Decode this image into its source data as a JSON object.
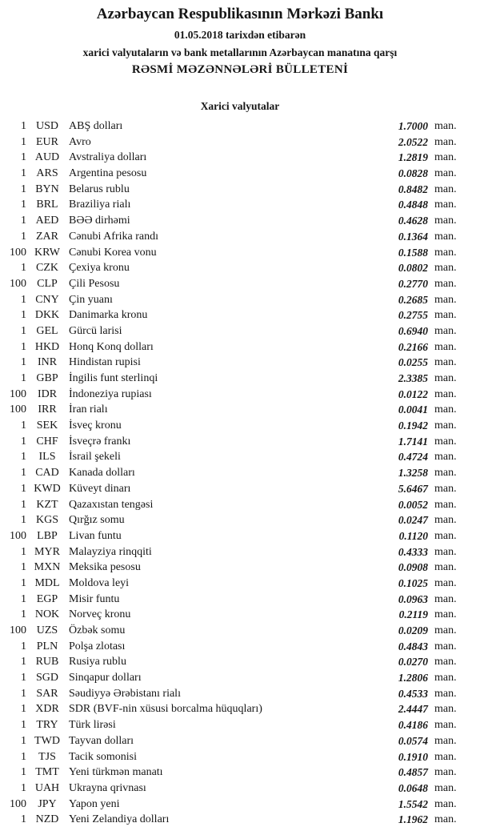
{
  "header": {
    "bank_name": "Azərbaycan Respublikasının Mərkəzi Bankı",
    "date_line": "01.05.2018 tarixdən etibarən",
    "subject_line": "xarici valyutaların və bank metallarının Azərbaycan manatına qarşı",
    "bulletin_line": "RƏSMİ MƏZƏNNƏLƏRİ BÜLLETENİ"
  },
  "section_title": "Xarici valyutalar",
  "unit_label": "man.",
  "rates": [
    {
      "qty": "1",
      "code": "USD",
      "name": "ABŞ dolları",
      "rate": "1.7000"
    },
    {
      "qty": "1",
      "code": "EUR",
      "name": "Avro",
      "rate": "2.0522"
    },
    {
      "qty": "1",
      "code": "AUD",
      "name": "Avstraliya dolları",
      "rate": "1.2819"
    },
    {
      "qty": "1",
      "code": "ARS",
      "name": "Argentina pesosu",
      "rate": "0.0828"
    },
    {
      "qty": "1",
      "code": "BYN",
      "name": "Belarus rublu",
      "rate": "0.8482"
    },
    {
      "qty": "1",
      "code": "BRL",
      "name": "Braziliya rialı",
      "rate": "0.4848"
    },
    {
      "qty": "1",
      "code": "AED",
      "name": "BƏƏ dirhəmi",
      "rate": "0.4628"
    },
    {
      "qty": "1",
      "code": "ZAR",
      "name": "Cənubi Afrika randı",
      "rate": "0.1364"
    },
    {
      "qty": "100",
      "code": "KRW",
      "name": "Cənubi Korea vonu",
      "rate": "0.1588"
    },
    {
      "qty": "1",
      "code": "CZK",
      "name": "Çexiya kronu",
      "rate": "0.0802"
    },
    {
      "qty": "100",
      "code": "CLP",
      "name": "Çili Pesosu",
      "rate": "0.2770"
    },
    {
      "qty": "1",
      "code": "CNY",
      "name": "Çin yuanı",
      "rate": "0.2685"
    },
    {
      "qty": "1",
      "code": "DKK",
      "name": "Danimarka kronu",
      "rate": "0.2755"
    },
    {
      "qty": "1",
      "code": "GEL",
      "name": "Gürcü larisi",
      "rate": "0.6940"
    },
    {
      "qty": "1",
      "code": "HKD",
      "name": "Honq Konq dolları",
      "rate": "0.2166"
    },
    {
      "qty": "1",
      "code": "INR",
      "name": "Hindistan rupisi",
      "rate": "0.0255"
    },
    {
      "qty": "1",
      "code": "GBP",
      "name": "İngilis funt sterlinqi",
      "rate": "2.3385"
    },
    {
      "qty": "100",
      "code": "IDR",
      "name": "İndoneziya rupiası",
      "rate": "0.0122"
    },
    {
      "qty": "100",
      "code": "IRR",
      "name": "İran rialı",
      "rate": "0.0041"
    },
    {
      "qty": "1",
      "code": "SEK",
      "name": "İsveç kronu",
      "rate": "0.1942"
    },
    {
      "qty": "1",
      "code": "CHF",
      "name": "İsveçrə frankı",
      "rate": "1.7141"
    },
    {
      "qty": "1",
      "code": "ILS",
      "name": "İsrail şekeli",
      "rate": "0.4724"
    },
    {
      "qty": "1",
      "code": "CAD",
      "name": "Kanada dolları",
      "rate": "1.3258"
    },
    {
      "qty": "1",
      "code": "KWD",
      "name": "Küveyt dinarı",
      "rate": "5.6467"
    },
    {
      "qty": "1",
      "code": "KZT",
      "name": "Qazaxıstan tengəsi",
      "rate": "0.0052"
    },
    {
      "qty": "1",
      "code": "KGS",
      "name": "Qırğız somu",
      "rate": "0.0247"
    },
    {
      "qty": "100",
      "code": "LBP",
      "name": "Livan funtu",
      "rate": "0.1120"
    },
    {
      "qty": "1",
      "code": "MYR",
      "name": "Malayziya rinqqiti",
      "rate": "0.4333"
    },
    {
      "qty": "1",
      "code": "MXN",
      "name": "Meksika pesosu",
      "rate": "0.0908"
    },
    {
      "qty": "1",
      "code": "MDL",
      "name": "Moldova leyi",
      "rate": "0.1025"
    },
    {
      "qty": "1",
      "code": "EGP",
      "name": "Misir funtu",
      "rate": "0.0963"
    },
    {
      "qty": "1",
      "code": "NOK",
      "name": "Norveç kronu",
      "rate": "0.2119"
    },
    {
      "qty": "100",
      "code": "UZS",
      "name": "Özbək somu",
      "rate": "0.0209"
    },
    {
      "qty": "1",
      "code": "PLN",
      "name": "Polşa zlotası",
      "rate": "0.4843"
    },
    {
      "qty": "1",
      "code": "RUB",
      "name": "Rusiya rublu",
      "rate": "0.0270"
    },
    {
      "qty": "1",
      "code": "SGD",
      "name": "Sinqapur dolları",
      "rate": "1.2806"
    },
    {
      "qty": "1",
      "code": "SAR",
      "name": "Səudiyyə Ərəbistanı rialı",
      "rate": "0.4533"
    },
    {
      "qty": "1",
      "code": "XDR",
      "name": "SDR (BVF-nin xüsusi borcalma hüquqları)",
      "rate": "2.4447"
    },
    {
      "qty": "1",
      "code": "TRY",
      "name": "Türk lirəsi",
      "rate": "0.4186"
    },
    {
      "qty": "1",
      "code": "TWD",
      "name": "Tayvan dolları",
      "rate": "0.0574"
    },
    {
      "qty": "1",
      "code": "TJS",
      "name": "Tacik somonisi",
      "rate": "0.1910"
    },
    {
      "qty": "1",
      "code": "TMT",
      "name": "Yeni türkmən manatı",
      "rate": "0.4857"
    },
    {
      "qty": "1",
      "code": "UAH",
      "name": "Ukrayna qrivnası",
      "rate": "0.0648"
    },
    {
      "qty": "100",
      "code": "JPY",
      "name": "Yapon yeni",
      "rate": "1.5542"
    },
    {
      "qty": "1",
      "code": "NZD",
      "name": "Yeni Zelandiya dolları",
      "rate": "1.1962"
    }
  ]
}
